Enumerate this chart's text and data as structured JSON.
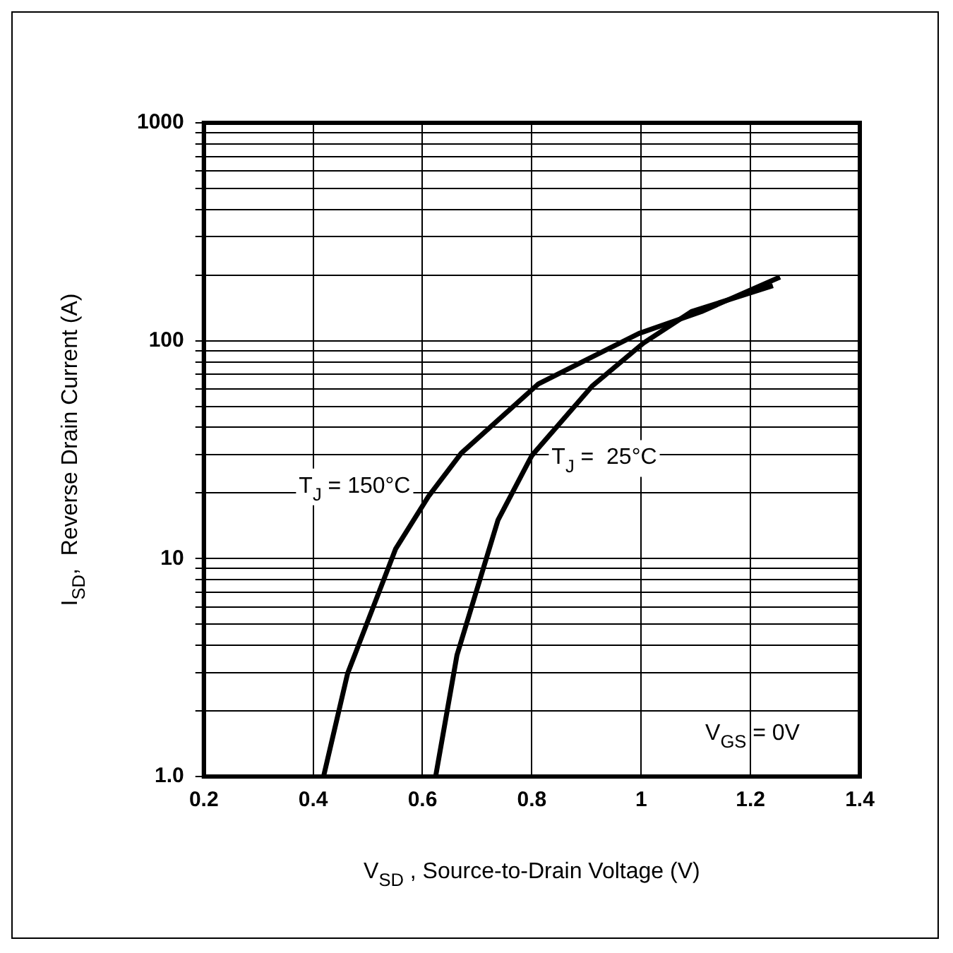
{
  "chart_data": {
    "type": "line",
    "xlabel": "V$_{SD}$ , Source-to-Drain Voltage (V)",
    "ylabel": "I$_{SD}$,  Reverse Drain Current (A)",
    "log": "y",
    "grid": true,
    "legend": false,
    "marker": "none",
    "line_style": "solid",
    "xlim": [
      0.2,
      1.4
    ],
    "xticks": [
      0.2,
      0.4,
      0.6,
      0.8,
      1.0,
      1.2,
      1.4
    ],
    "ylim": [
      1,
      1000
    ],
    "yticks": [
      {
        "value": 1,
        "label": "1.0"
      },
      {
        "value": 2,
        "label": null
      },
      {
        "value": 3,
        "label": null
      },
      {
        "value": 4,
        "label": null
      },
      {
        "value": 5,
        "label": null
      },
      {
        "value": 6,
        "label": null
      },
      {
        "value": 7,
        "label": null
      },
      {
        "value": 8,
        "label": null
      },
      {
        "value": 9,
        "label": null
      },
      10,
      {
        "value": 20,
        "label": null
      },
      {
        "value": 30,
        "label": null
      },
      {
        "value": 40,
        "label": null
      },
      {
        "value": 50,
        "label": null
      },
      {
        "value": 60,
        "label": null
      },
      {
        "value": 70,
        "label": null
      },
      {
        "value": 80,
        "label": null
      },
      {
        "value": 90,
        "label": null
      },
      100,
      {
        "value": 200,
        "label": null
      },
      {
        "value": 300,
        "label": null
      },
      {
        "value": 400,
        "label": null
      },
      {
        "value": 500,
        "label": null
      },
      {
        "value": 600,
        "label": null
      },
      {
        "value": 700,
        "label": null
      },
      {
        "value": 800,
        "label": null
      },
      {
        "value": 900,
        "label": null
      },
      1000
    ],
    "series": [
      {
        "name": "T$_{J}$ = 150°C",
        "color": "#000000",
        "x": [
          0.419,
          0.463,
          0.551,
          0.611,
          0.671,
          0.812,
          0.996,
          1.11,
          1.254
        ],
        "values": [
          1,
          2.97,
          11.1,
          19.3,
          30.5,
          63.4,
          108,
          136,
          196
        ]
      },
      {
        "name": "T$_{J}$ =  25°C",
        "color": "#000000",
        "x": [
          0.624,
          0.663,
          0.738,
          0.8,
          0.91,
          1.004,
          1.092,
          1.241
        ],
        "values": [
          1,
          3.6,
          15,
          29.7,
          61.8,
          97.5,
          136,
          179
        ]
      }
    ],
    "annotations": [
      "V$_{GS}$ = 0V"
    ]
  }
}
